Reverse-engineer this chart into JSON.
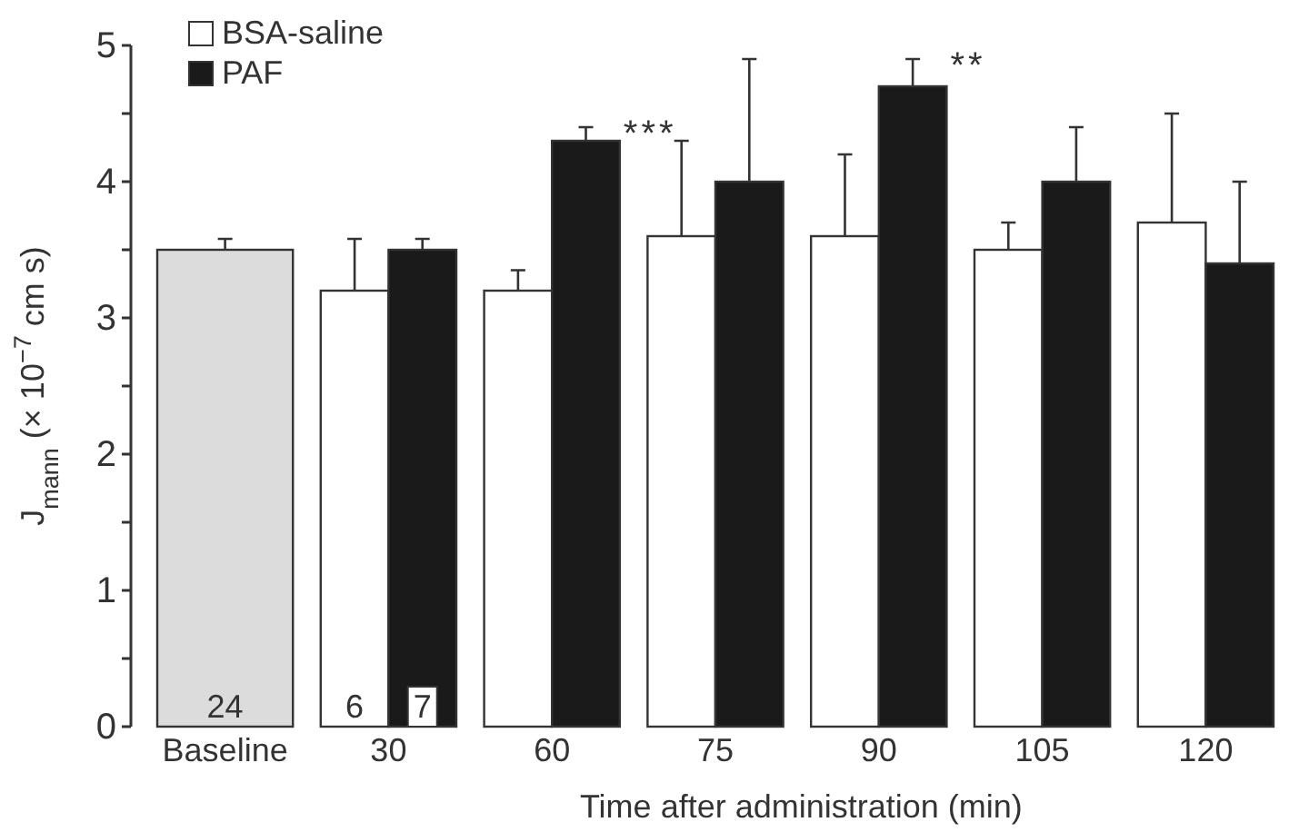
{
  "chart_data": {
    "type": "bar",
    "xlabel": "Time after administration (min)",
    "ylabel": "J$_{mann}$ (× 10$^{−7}$ cm s)",
    "categories": [
      "Baseline",
      "30",
      "60",
      "75",
      "90",
      "105",
      "120"
    ],
    "series": [
      {
        "color": "#dcdcdc",
        "values": [
          3.5,
          null,
          null,
          null,
          null,
          null,
          null
        ],
        "errors": [
          0.08,
          null,
          null,
          null,
          null,
          null,
          null
        ]
      },
      {
        "name": "BSA-saline",
        "color": "#ffffff",
        "values": [
          null,
          3.2,
          3.2,
          3.6,
          3.6,
          3.5,
          3.7
        ],
        "errors": [
          null,
          0.38,
          0.15,
          0.7,
          0.6,
          0.2,
          0.8
        ]
      },
      {
        "name": "PAF",
        "color": "#1a1a1a",
        "values": [
          null,
          3.5,
          4.3,
          4.0,
          4.7,
          4.0,
          3.4
        ],
        "errors": [
          null,
          0.08,
          0.1,
          0.9,
          0.2,
          0.4,
          0.6
        ]
      }
    ],
    "ylim": [
      0,
      5
    ],
    "yticks": [
      0,
      {
        "value": 0.5,
        "label": null
      },
      1,
      {
        "value": 1.5,
        "label": null
      },
      2,
      {
        "value": 2.5,
        "label": null
      },
      3,
      {
        "value": 3.5,
        "label": null
      },
      4,
      {
        "value": 4.5,
        "label": null
      },
      5
    ],
    "annotations": [
      {
        "text": "24",
        "x": "Baseline",
        "y": 0
      },
      {
        "text": "6",
        "x": "30",
        "y": 0
      },
      {
        "text": "7",
        "x": "30",
        "y": 0
      },
      {
        "text": "***",
        "x": "60",
        "y": 4.3
      },
      {
        "text": "**",
        "x": "90",
        "y": 4.7
      }
    ],
    "legend": "top left"
  }
}
